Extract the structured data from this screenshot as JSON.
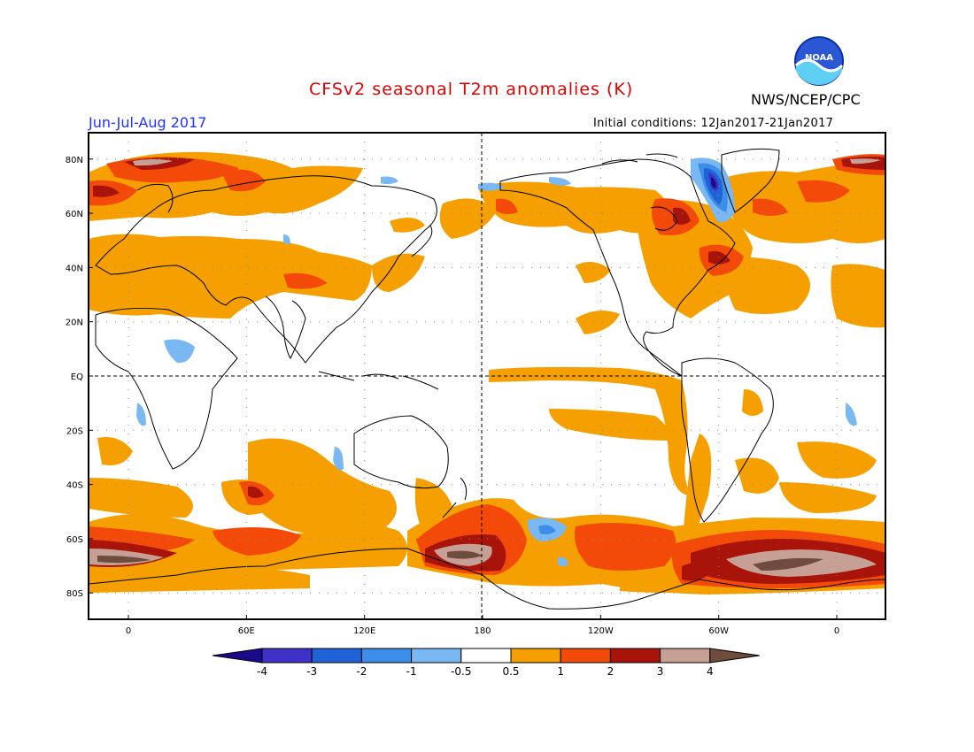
{
  "header": {
    "title": "CFSv2 seasonal T2m anomalies (K)",
    "season": "Jun-Jul-Aug 2017",
    "agency": "NWS/NCEP/CPC",
    "initial_conditions": "Initial conditions: 12Jan2017-21Jan2017",
    "logo_text": "NOAA"
  },
  "map": {
    "lat_labels": [
      "80N",
      "60N",
      "40N",
      "20N",
      "EQ",
      "20S",
      "40S",
      "60S",
      "80S"
    ],
    "lon_labels": [
      "0",
      "60E",
      "120E",
      "180",
      "120W",
      "60W",
      "0"
    ]
  },
  "colorbar": {
    "levels": [
      "-4",
      "-3",
      "-2",
      "-1",
      "-0.5",
      "0.5",
      "1",
      "2",
      "3",
      "4"
    ],
    "colors": {
      "below_-4": "#1a0a8c",
      "-4_to_-3": "#3e31c8",
      "-3_to_-2": "#1f63d6",
      "-2_to_-1": "#3d8ee8",
      "-1_to_-0.5": "#79b8f2",
      "-0.5_to_0.5": "#ffffff",
      "0.5_to_1": "#f5a000",
      "1_to_2": "#f34a0a",
      "2_to_3": "#a8140a",
      "3_to_4": "#c7a095",
      "above_4": "#6e4c3e"
    }
  }
}
